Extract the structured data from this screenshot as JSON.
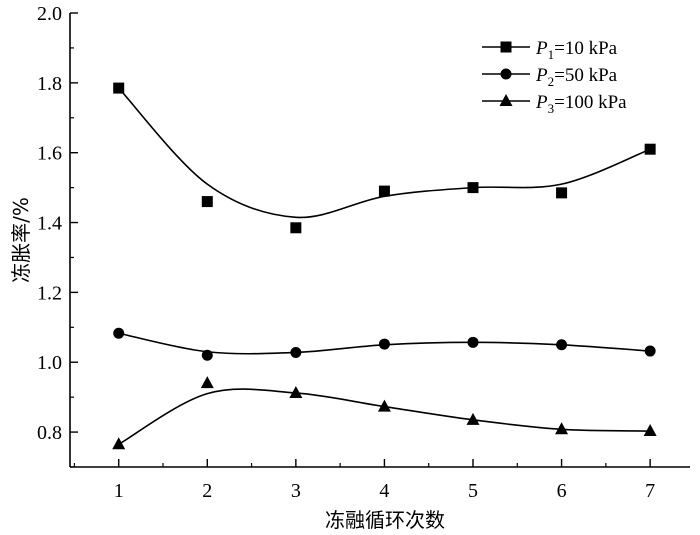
{
  "chart_data": {
    "type": "line",
    "xlabel": "冻融循环次数",
    "ylabel": "冻胀率/%",
    "x": [
      1,
      2,
      3,
      4,
      5,
      6,
      7
    ],
    "xlim": [
      0.45,
      7.45
    ],
    "ylim": [
      0.7,
      2.0
    ],
    "xticks": [
      1,
      2,
      3,
      4,
      5,
      6,
      7
    ],
    "yticks": [
      0.8,
      1.0,
      1.2,
      1.4,
      1.6,
      1.8,
      2.0
    ],
    "ytick_labels": [
      "0.8",
      "1.0",
      "1.2",
      "1.4",
      "1.6",
      "1.8",
      "2.0"
    ],
    "grid": false,
    "legend_position": "top-right",
    "series": [
      {
        "name": "P1=10 kPa",
        "legend_symbol": "P",
        "legend_sub": "1",
        "legend_rest": "=10 kPa",
        "marker": "square",
        "values": [
          1.785,
          1.46,
          1.385,
          1.49,
          1.5,
          1.485,
          1.61
        ],
        "curve": [
          1.785,
          1.51,
          1.415,
          1.475,
          1.5,
          1.51,
          1.61
        ]
      },
      {
        "name": "P2=50 kPa",
        "legend_symbol": "P",
        "legend_sub": "2",
        "legend_rest": "=50 kPa",
        "marker": "circle",
        "values": [
          1.083,
          1.02,
          1.028,
          1.052,
          1.057,
          1.05,
          1.032
        ],
        "curve": [
          1.083,
          1.03,
          1.028,
          1.05,
          1.057,
          1.05,
          1.032
        ]
      },
      {
        "name": "P3=100 kPa",
        "legend_symbol": "P",
        "legend_sub": "3",
        "legend_rest": "=100 kPa",
        "marker": "triangle",
        "values": [
          0.765,
          0.94,
          0.912,
          0.873,
          0.835,
          0.808,
          0.803
        ],
        "curve": [
          0.765,
          0.91,
          0.912,
          0.873,
          0.835,
          0.808,
          0.803
        ]
      }
    ],
    "colors": {
      "axis": "#000000",
      "series": "#000000"
    }
  }
}
